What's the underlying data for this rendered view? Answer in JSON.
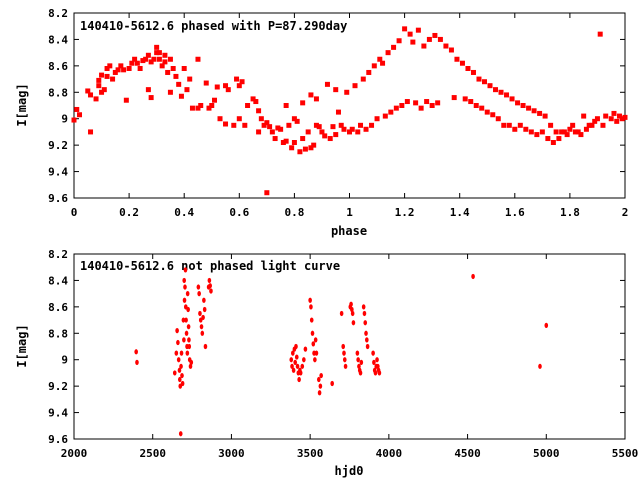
{
  "colors": {
    "series": "#ff0000",
    "axis": "#000000",
    "background": "#ffffff"
  },
  "chart_data": [
    {
      "type": "scatter",
      "title": "140410-5612.6 phased with P=87.290day",
      "xlabel": "phase",
      "ylabel": "I[mag]",
      "xlim": [
        0,
        2
      ],
      "ylim": [
        9.6,
        8.2
      ],
      "y_inverted": true,
      "grid": false,
      "marker": "square",
      "xticks": [
        "0",
        "0.2",
        "0.4",
        "0.6",
        "0.8",
        "1",
        "1.2",
        "1.4",
        "1.6",
        "1.8",
        "2"
      ],
      "yticks": [
        "8.2",
        "8.4",
        "8.6",
        "8.8",
        "9",
        "9.2",
        "9.4",
        "9.6"
      ],
      "points": [
        [
          0.0,
          9.01
        ],
        [
          0.01,
          8.93
        ],
        [
          0.02,
          8.97
        ],
        [
          0.05,
          8.79
        ],
        [
          0.06,
          8.82
        ],
        [
          0.06,
          9.1
        ],
        [
          0.08,
          8.85
        ],
        [
          0.09,
          8.71
        ],
        [
          0.09,
          8.75
        ],
        [
          0.1,
          8.8
        ],
        [
          0.11,
          8.78
        ],
        [
          0.1,
          8.67
        ],
        [
          0.12,
          8.68
        ],
        [
          0.12,
          8.62
        ],
        [
          0.13,
          8.6
        ],
        [
          0.14,
          8.7
        ],
        [
          0.15,
          8.65
        ],
        [
          0.16,
          8.63
        ],
        [
          0.17,
          8.6
        ],
        [
          0.18,
          8.63
        ],
        [
          0.19,
          8.86
        ],
        [
          0.2,
          8.62
        ],
        [
          0.21,
          8.58
        ],
        [
          0.22,
          8.55
        ],
        [
          0.23,
          8.58
        ],
        [
          0.24,
          8.62
        ],
        [
          0.25,
          8.56
        ],
        [
          0.26,
          8.55
        ],
        [
          0.27,
          8.52
        ],
        [
          0.27,
          8.78
        ],
        [
          0.28,
          8.57
        ],
        [
          0.28,
          8.84
        ],
        [
          0.29,
          8.55
        ],
        [
          0.3,
          8.46
        ],
        [
          0.3,
          8.5
        ],
        [
          0.31,
          8.5
        ],
        [
          0.31,
          8.55
        ],
        [
          0.32,
          8.6
        ],
        [
          0.33,
          8.52
        ],
        [
          0.33,
          8.57
        ],
        [
          0.34,
          8.65
        ],
        [
          0.35,
          8.55
        ],
        [
          0.35,
          8.8
        ],
        [
          0.36,
          8.62
        ],
        [
          0.37,
          8.68
        ],
        [
          0.38,
          8.74
        ],
        [
          0.39,
          8.83
        ],
        [
          0.4,
          8.62
        ],
        [
          0.41,
          8.78
        ],
        [
          0.42,
          8.7
        ],
        [
          0.43,
          8.92
        ],
        [
          0.45,
          8.55
        ],
        [
          0.45,
          8.92
        ],
        [
          0.46,
          8.9
        ],
        [
          0.48,
          8.73
        ],
        [
          0.49,
          8.92
        ],
        [
          0.5,
          8.9
        ],
        [
          0.51,
          8.86
        ],
        [
          0.52,
          8.76
        ],
        [
          0.53,
          9.0
        ],
        [
          0.55,
          8.75
        ],
        [
          0.55,
          9.04
        ],
        [
          0.56,
          8.78
        ],
        [
          0.58,
          9.05
        ],
        [
          0.59,
          8.7
        ],
        [
          0.6,
          8.75
        ],
        [
          0.6,
          9.0
        ],
        [
          0.61,
          8.72
        ],
        [
          0.62,
          9.05
        ],
        [
          0.63,
          8.9
        ],
        [
          0.65,
          8.85
        ],
        [
          0.66,
          8.87
        ],
        [
          0.67,
          8.94
        ],
        [
          0.67,
          9.1
        ],
        [
          0.68,
          9.0
        ],
        [
          0.69,
          9.05
        ],
        [
          0.7,
          9.03
        ],
        [
          0.7,
          9.56
        ],
        [
          0.71,
          9.06
        ],
        [
          0.72,
          9.1
        ],
        [
          0.73,
          9.15
        ],
        [
          0.74,
          9.07
        ],
        [
          0.75,
          9.08
        ],
        [
          0.76,
          9.18
        ],
        [
          0.77,
          9.17
        ],
        [
          0.77,
          8.9
        ],
        [
          0.78,
          9.05
        ],
        [
          0.79,
          9.22
        ],
        [
          0.8,
          9.18
        ],
        [
          0.8,
          9.0
        ],
        [
          0.81,
          9.02
        ],
        [
          0.82,
          9.25
        ],
        [
          0.83,
          9.15
        ],
        [
          0.83,
          8.88
        ],
        [
          0.84,
          9.23
        ],
        [
          0.85,
          9.1
        ],
        [
          0.86,
          9.22
        ],
        [
          0.86,
          8.82
        ],
        [
          0.87,
          9.2
        ],
        [
          0.88,
          9.05
        ],
        [
          0.88,
          8.85
        ],
        [
          0.89,
          9.06
        ],
        [
          0.9,
          9.1
        ],
        [
          0.91,
          9.13
        ],
        [
          0.92,
          8.74
        ],
        [
          0.93,
          9.15
        ],
        [
          0.94,
          9.06
        ],
        [
          0.95,
          9.12
        ],
        [
          0.95,
          8.78
        ],
        [
          0.96,
          8.95
        ],
        [
          0.97,
          9.05
        ],
        [
          0.98,
          9.08
        ],
        [
          0.99,
          8.8
        ],
        [
          1.0,
          9.1
        ],
        [
          1.01,
          9.08
        ],
        [
          1.02,
          8.75
        ],
        [
          1.03,
          9.1
        ],
        [
          1.04,
          9.05
        ],
        [
          1.05,
          8.7
        ],
        [
          1.06,
          9.08
        ],
        [
          1.07,
          8.65
        ],
        [
          1.08,
          9.05
        ],
        [
          1.09,
          8.6
        ],
        [
          1.1,
          9.0
        ],
        [
          1.11,
          8.55
        ],
        [
          1.12,
          8.58
        ],
        [
          1.13,
          8.98
        ],
        [
          1.14,
          8.5
        ],
        [
          1.15,
          8.95
        ],
        [
          1.16,
          8.46
        ],
        [
          1.17,
          8.92
        ],
        [
          1.18,
          8.41
        ],
        [
          1.19,
          8.9
        ],
        [
          1.2,
          8.32
        ],
        [
          1.21,
          8.87
        ],
        [
          1.22,
          8.36
        ],
        [
          1.23,
          8.42
        ],
        [
          1.24,
          8.88
        ],
        [
          1.25,
          8.33
        ],
        [
          1.26,
          8.92
        ],
        [
          1.27,
          8.45
        ],
        [
          1.28,
          8.87
        ],
        [
          1.29,
          8.4
        ],
        [
          1.3,
          8.9
        ],
        [
          1.31,
          8.37
        ],
        [
          1.32,
          8.88
        ],
        [
          1.33,
          8.4
        ],
        [
          1.35,
          8.45
        ],
        [
          1.37,
          8.48
        ],
        [
          1.38,
          8.84
        ],
        [
          1.39,
          8.55
        ],
        [
          1.41,
          8.58
        ],
        [
          1.42,
          8.85
        ],
        [
          1.43,
          8.62
        ],
        [
          1.44,
          8.87
        ],
        [
          1.45,
          8.65
        ],
        [
          1.46,
          8.9
        ],
        [
          1.47,
          8.7
        ],
        [
          1.48,
          8.92
        ],
        [
          1.49,
          8.72
        ],
        [
          1.5,
          8.95
        ],
        [
          1.51,
          8.75
        ],
        [
          1.52,
          8.97
        ],
        [
          1.53,
          8.78
        ],
        [
          1.54,
          9.0
        ],
        [
          1.55,
          8.8
        ],
        [
          1.56,
          9.05
        ],
        [
          1.57,
          8.82
        ],
        [
          1.58,
          9.05
        ],
        [
          1.59,
          8.85
        ],
        [
          1.6,
          9.08
        ],
        [
          1.61,
          8.88
        ],
        [
          1.62,
          9.05
        ],
        [
          1.63,
          8.9
        ],
        [
          1.64,
          9.08
        ],
        [
          1.65,
          8.92
        ],
        [
          1.66,
          9.1
        ],
        [
          1.67,
          8.94
        ],
        [
          1.68,
          9.12
        ],
        [
          1.69,
          8.96
        ],
        [
          1.7,
          9.1
        ],
        [
          1.71,
          8.98
        ],
        [
          1.72,
          9.15
        ],
        [
          1.73,
          9.05
        ],
        [
          1.74,
          9.18
        ],
        [
          1.75,
          9.1
        ],
        [
          1.76,
          9.15
        ],
        [
          1.77,
          9.1
        ],
        [
          1.78,
          9.1
        ],
        [
          1.79,
          9.12
        ],
        [
          1.8,
          9.08
        ],
        [
          1.81,
          9.05
        ],
        [
          1.82,
          9.1
        ],
        [
          1.83,
          9.1
        ],
        [
          1.84,
          9.12
        ],
        [
          1.85,
          8.98
        ],
        [
          1.86,
          9.08
        ],
        [
          1.87,
          9.05
        ],
        [
          1.88,
          9.05
        ],
        [
          1.89,
          9.02
        ],
        [
          1.9,
          9.0
        ],
        [
          1.91,
          8.36
        ],
        [
          1.92,
          9.05
        ],
        [
          1.93,
          8.98
        ],
        [
          1.95,
          9.0
        ],
        [
          1.96,
          8.96
        ],
        [
          1.97,
          9.02
        ],
        [
          1.98,
          8.98
        ],
        [
          1.99,
          9.0
        ],
        [
          2.0,
          8.99
        ]
      ]
    },
    {
      "type": "scatter",
      "title": "140410-5612.6 not phased light curve",
      "xlabel": "hjd0",
      "ylabel": "I[mag]",
      "xlim": [
        2000,
        5500
      ],
      "ylim": [
        9.6,
        8.2
      ],
      "y_inverted": true,
      "grid": false,
      "marker": "dot",
      "xticks": [
        "2000",
        "2500",
        "3000",
        "3500",
        "4000",
        "4500",
        "5000",
        "5500"
      ],
      "yticks": [
        "8.2",
        "8.4",
        "8.6",
        "8.8",
        "9",
        "9.2",
        "9.4",
        "9.6"
      ],
      "points": [
        [
          2395,
          8.94
        ],
        [
          2400,
          9.02
        ],
        [
          2640,
          9.1
        ],
        [
          2650,
          8.95
        ],
        [
          2655,
          8.78
        ],
        [
          2660,
          8.87
        ],
        [
          2665,
          9.0
        ],
        [
          2670,
          9.08
        ],
        [
          2672,
          9.15
        ],
        [
          2675,
          9.2
        ],
        [
          2678,
          9.56
        ],
        [
          2680,
          9.05
        ],
        [
          2683,
          8.95
        ],
        [
          2686,
          9.12
        ],
        [
          2690,
          9.18
        ],
        [
          2695,
          8.7
        ],
        [
          2698,
          8.85
        ],
        [
          2700,
          8.4
        ],
        [
          2702,
          8.55
        ],
        [
          2705,
          8.45
        ],
        [
          2708,
          8.32
        ],
        [
          2710,
          8.6
        ],
        [
          2712,
          8.7
        ],
        [
          2715,
          8.8
        ],
        [
          2718,
          8.9
        ],
        [
          2720,
          8.95
        ],
        [
          2722,
          8.5
        ],
        [
          2725,
          8.62
        ],
        [
          2728,
          8.75
        ],
        [
          2730,
          8.85
        ],
        [
          2732,
          8.9
        ],
        [
          2735,
          9.0
        ],
        [
          2740,
          9.05
        ],
        [
          2745,
          9.02
        ],
        [
          2790,
          8.45
        ],
        [
          2795,
          8.5
        ],
        [
          2800,
          8.65
        ],
        [
          2805,
          8.7
        ],
        [
          2810,
          8.75
        ],
        [
          2815,
          8.8
        ],
        [
          2820,
          8.68
        ],
        [
          2825,
          8.55
        ],
        [
          2830,
          8.62
        ],
        [
          2835,
          8.9
        ],
        [
          2855,
          8.45
        ],
        [
          2860,
          8.4
        ],
        [
          2865,
          8.44
        ],
        [
          2870,
          8.48
        ],
        [
          3380,
          9.0
        ],
        [
          3385,
          9.05
        ],
        [
          3390,
          8.95
        ],
        [
          3395,
          9.08
        ],
        [
          3400,
          8.92
        ],
        [
          3405,
          9.02
        ],
        [
          3410,
          8.9
        ],
        [
          3415,
          8.98
        ],
        [
          3420,
          9.05
        ],
        [
          3425,
          9.1
        ],
        [
          3430,
          9.15
        ],
        [
          3435,
          9.08
        ],
        [
          3440,
          9.1
        ],
        [
          3450,
          9.05
        ],
        [
          3460,
          9.0
        ],
        [
          3470,
          8.92
        ],
        [
          3500,
          8.55
        ],
        [
          3505,
          8.6
        ],
        [
          3510,
          8.7
        ],
        [
          3515,
          8.8
        ],
        [
          3520,
          8.88
        ],
        [
          3525,
          8.95
        ],
        [
          3530,
          9.0
        ],
        [
          3535,
          8.85
        ],
        [
          3540,
          8.95
        ],
        [
          3555,
          9.15
        ],
        [
          3560,
          9.25
        ],
        [
          3565,
          9.2
        ],
        [
          3570,
          9.12
        ],
        [
          3640,
          9.18
        ],
        [
          3700,
          8.65
        ],
        [
          3710,
          8.9
        ],
        [
          3715,
          8.95
        ],
        [
          3720,
          9.0
        ],
        [
          3725,
          9.05
        ],
        [
          3755,
          8.6
        ],
        [
          3760,
          8.58
        ],
        [
          3765,
          8.62
        ],
        [
          3770,
          8.65
        ],
        [
          3775,
          8.72
        ],
        [
          3800,
          8.95
        ],
        [
          3805,
          9.0
        ],
        [
          3810,
          9.05
        ],
        [
          3815,
          9.08
        ],
        [
          3820,
          9.1
        ],
        [
          3825,
          9.02
        ],
        [
          3840,
          8.6
        ],
        [
          3845,
          8.65
        ],
        [
          3850,
          8.72
        ],
        [
          3855,
          8.8
        ],
        [
          3860,
          8.85
        ],
        [
          3865,
          8.9
        ],
        [
          3900,
          8.95
        ],
        [
          3905,
          9.02
        ],
        [
          3910,
          9.08
        ],
        [
          3915,
          9.1
        ],
        [
          3920,
          9.05
        ],
        [
          3925,
          9.0
        ],
        [
          3930,
          9.05
        ],
        [
          3935,
          9.08
        ],
        [
          3940,
          9.1
        ],
        [
          4535,
          8.37
        ],
        [
          4960,
          9.05
        ],
        [
          5000,
          8.74
        ]
      ]
    }
  ]
}
